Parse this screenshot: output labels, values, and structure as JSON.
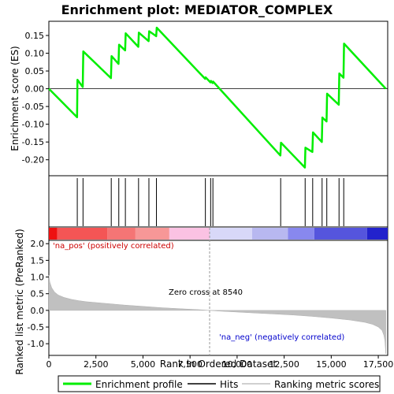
{
  "chart_data": {
    "type": "line",
    "title": "Enrichment plot: MEDIATOR_COMPLEX",
    "panels": {
      "enrichment": {
        "ylabel": "Enrichment score (ES)",
        "ylim": [
          -0.245,
          0.19
        ],
        "yticks": [
          -0.2,
          -0.15,
          -0.1,
          -0.05,
          0.0,
          0.05,
          0.1,
          0.15
        ],
        "ytick_labels": [
          "-0.20",
          "-0.15",
          "-0.10",
          "-0.05",
          "0.00",
          "0.05",
          "0.10",
          "0.15"
        ],
        "series": [
          {
            "name": "Enrichment profile",
            "color": "#00ee00",
            "x": [
              0,
              1500,
              1520,
              1800,
              1830,
              3300,
              3330,
              3700,
              3730,
              4050,
              4080,
              4750,
              4780,
              5300,
              5330,
              5700,
              5730,
              8300,
              8330,
              8580,
              8610,
              8700,
              8730,
              12300,
              12330,
              13600,
              13630,
              14000,
              14030,
              14500,
              14530,
              14750,
              14780,
              15400,
              15430,
              15650,
              15680,
              17900
            ],
            "y": [
              0.0,
              -0.08,
              0.025,
              0.005,
              0.105,
              0.03,
              0.092,
              0.07,
              0.124,
              0.108,
              0.156,
              0.118,
              0.158,
              0.134,
              0.162,
              0.148,
              0.172,
              0.028,
              0.032,
              0.018,
              0.022,
              0.016,
              0.02,
              -0.188,
              -0.152,
              -0.222,
              -0.166,
              -0.178,
              -0.123,
              -0.15,
              -0.081,
              -0.092,
              -0.014,
              -0.045,
              0.043,
              0.031,
              0.127,
              0.0
            ]
          }
        ]
      },
      "hits": {
        "name": "Hits",
        "positions": [
          1510,
          1815,
          3315,
          3715,
          4065,
          4765,
          5315,
          5715,
          8315,
          8595,
          8715,
          12315,
          13615,
          14015,
          14515,
          14765,
          15415,
          15665
        ]
      },
      "ranked_metric": {
        "name": "Ranking metric scores",
        "ylabel": "Ranked list metric (PreRanked)",
        "ylim": [
          -1.35,
          2.1
        ],
        "yticks": [
          -1.0,
          -0.5,
          0.0,
          0.5,
          1.0,
          1.5,
          2.0
        ],
        "ytick_labels": [
          "-1.0",
          "-0.5",
          "0.0",
          "0.5",
          "1.0",
          "1.5",
          "2.0"
        ],
        "x": [
          0,
          50,
          150,
          300,
          500,
          800,
          1200,
          1600,
          2000,
          3000,
          4000,
          5000,
          6000,
          7000,
          8000,
          8540,
          9000,
          10000,
          11000,
          12000,
          13000,
          14000,
          15000,
          16000,
          16800,
          17200,
          17500,
          17700,
          17800,
          17850,
          17900
        ],
        "y": [
          1.05,
          0.85,
          0.68,
          0.55,
          0.46,
          0.39,
          0.33,
          0.29,
          0.26,
          0.21,
          0.16,
          0.12,
          0.08,
          0.05,
          0.02,
          0.0,
          -0.02,
          -0.05,
          -0.08,
          -0.11,
          -0.14,
          -0.18,
          -0.23,
          -0.29,
          -0.36,
          -0.42,
          -0.5,
          -0.6,
          -0.75,
          -0.9,
          -1.3
        ],
        "annotations": {
          "pos": "'na_pos' (positively correlated)",
          "neg": "'na_neg' (negatively correlated)",
          "zero": "Zero cross at 8540"
        },
        "zero_cross": 8540
      }
    },
    "x_axis": {
      "label": "Rank in Ordered Dataset",
      "xlim": [
        0,
        18000
      ],
      "ticks": [
        0,
        2500,
        5000,
        7500,
        10000,
        12500,
        15000,
        17500
      ],
      "tick_labels": [
        "0",
        "2,500",
        "5,000",
        "7,500",
        "10,000",
        "12,500",
        "15,000",
        "17,500"
      ]
    },
    "color_bar": {
      "segments": [
        {
          "x0": 0,
          "x1": 450,
          "color": "#ee1111"
        },
        {
          "x0": 450,
          "x1": 3100,
          "color": "#f45555"
        },
        {
          "x0": 3100,
          "x1": 4600,
          "color": "#f57575"
        },
        {
          "x0": 4600,
          "x1": 6400,
          "color": "#f79797"
        },
        {
          "x0": 6400,
          "x1": 8540,
          "color": "#fbc2e3"
        },
        {
          "x0": 8540,
          "x1": 10800,
          "color": "#d8d8f8"
        },
        {
          "x0": 10800,
          "x1": 12700,
          "color": "#b8b8f0"
        },
        {
          "x0": 12700,
          "x1": 14100,
          "color": "#8888ee"
        },
        {
          "x0": 14100,
          "x1": 16900,
          "color": "#5555dd"
        },
        {
          "x0": 16900,
          "x1": 18000,
          "color": "#2222cc"
        }
      ]
    },
    "legend": {
      "placement": "bottom",
      "items": [
        {
          "label": "Enrichment profile",
          "color": "#00ee00"
        },
        {
          "label": "Hits",
          "color": "#000000"
        },
        {
          "label": "Ranking metric scores",
          "color": "#c0c0c0"
        }
      ]
    }
  }
}
